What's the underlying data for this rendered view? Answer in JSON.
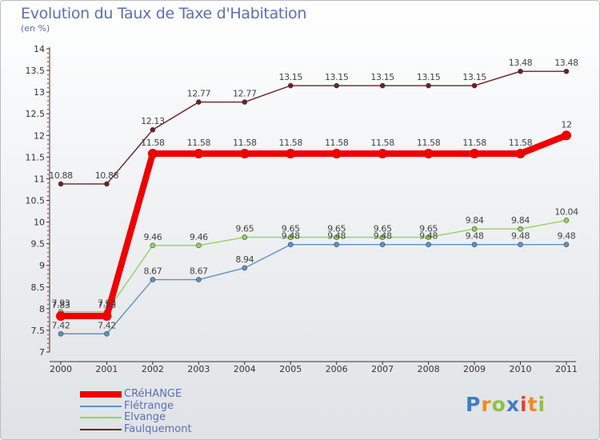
{
  "title": "Evolution du Taux de Taxe d'Habitation",
  "subtitle": "(en %)",
  "logo": {
    "letters": [
      "P",
      "r",
      "o",
      "x",
      "i",
      "t",
      "i"
    ],
    "colors": [
      "#3d7ec4",
      "#f28a1c",
      "#8fc13e",
      "#3d7ec4",
      "#e2442c",
      "#f28a1c",
      "#8fc13e"
    ]
  },
  "chart_data": {
    "type": "line",
    "title": "Evolution du Taux de Taxe d'Habitation",
    "subtitle": "(en %)",
    "x": [
      "2000",
      "2001",
      "2002",
      "2003",
      "2004",
      "2005",
      "2006",
      "2007",
      "2008",
      "2009",
      "2010",
      "2011"
    ],
    "ylim": [
      7,
      14
    ],
    "y_ticks": [
      "7",
      "7.5",
      "8",
      "8.5",
      "9",
      "9.5",
      "10",
      "10.5",
      "11",
      "11.5",
      "12",
      "12.5",
      "13",
      "13.5",
      "14"
    ],
    "grid": false,
    "legend_position": "bottom-left",
    "series": [
      {
        "name": "Faulquemont",
        "color": "#6e1f24",
        "values": [
          10.88,
          10.88,
          12.13,
          12.77,
          12.77,
          13.15,
          13.15,
          13.15,
          13.15,
          13.15,
          13.48,
          13.48
        ],
        "labels": [
          "10.88",
          "10.88",
          "12.13",
          "12.77",
          "12.77",
          "13.15",
          "13.15",
          "13.15",
          "13.15",
          "13.15",
          "13.48",
          "13.48"
        ]
      },
      {
        "name": "Elvange",
        "color": "#92d460",
        "values": [
          7.93,
          7.93,
          9.46,
          9.46,
          9.65,
          9.65,
          9.65,
          9.65,
          9.65,
          9.84,
          9.84,
          10.04
        ],
        "labels": [
          "7.93",
          "7.93",
          "9.46",
          "9.46",
          "9.65",
          "9.65",
          "9.65",
          "9.65",
          "9.65",
          "9.84",
          "9.84",
          "10.04"
        ]
      },
      {
        "name": "Flétrange",
        "color": "#5d93c4",
        "values": [
          7.42,
          7.42,
          8.67,
          8.67,
          8.94,
          9.48,
          9.48,
          9.48,
          9.48,
          9.48,
          9.48,
          9.48
        ],
        "labels": [
          "7.42",
          "7.42",
          "8.67",
          "8.67",
          "8.94",
          "9.48",
          "9.48",
          "9.48",
          "9.48",
          "9.48",
          "9.48",
          "9.48"
        ]
      },
      {
        "name": "CRéHANGE",
        "color": "#ee0000",
        "values": [
          7.83,
          7.83,
          11.58,
          11.58,
          11.58,
          11.58,
          11.58,
          11.58,
          11.58,
          11.58,
          11.58,
          12
        ],
        "labels": [
          "7.83",
          "7.83",
          "11.58",
          "11.58",
          "11.58",
          "11.58",
          "11.58",
          "11.58",
          "11.58",
          "11.58",
          "11.58",
          "12"
        ]
      }
    ]
  },
  "legend": [
    {
      "name": "CRéHANGE",
      "color": "#ee0000"
    },
    {
      "name": "Flétrange",
      "color": "#5d93c4"
    },
    {
      "name": "Elvange",
      "color": "#92d460"
    },
    {
      "name": "Faulquemont",
      "color": "#6e1f24"
    }
  ]
}
